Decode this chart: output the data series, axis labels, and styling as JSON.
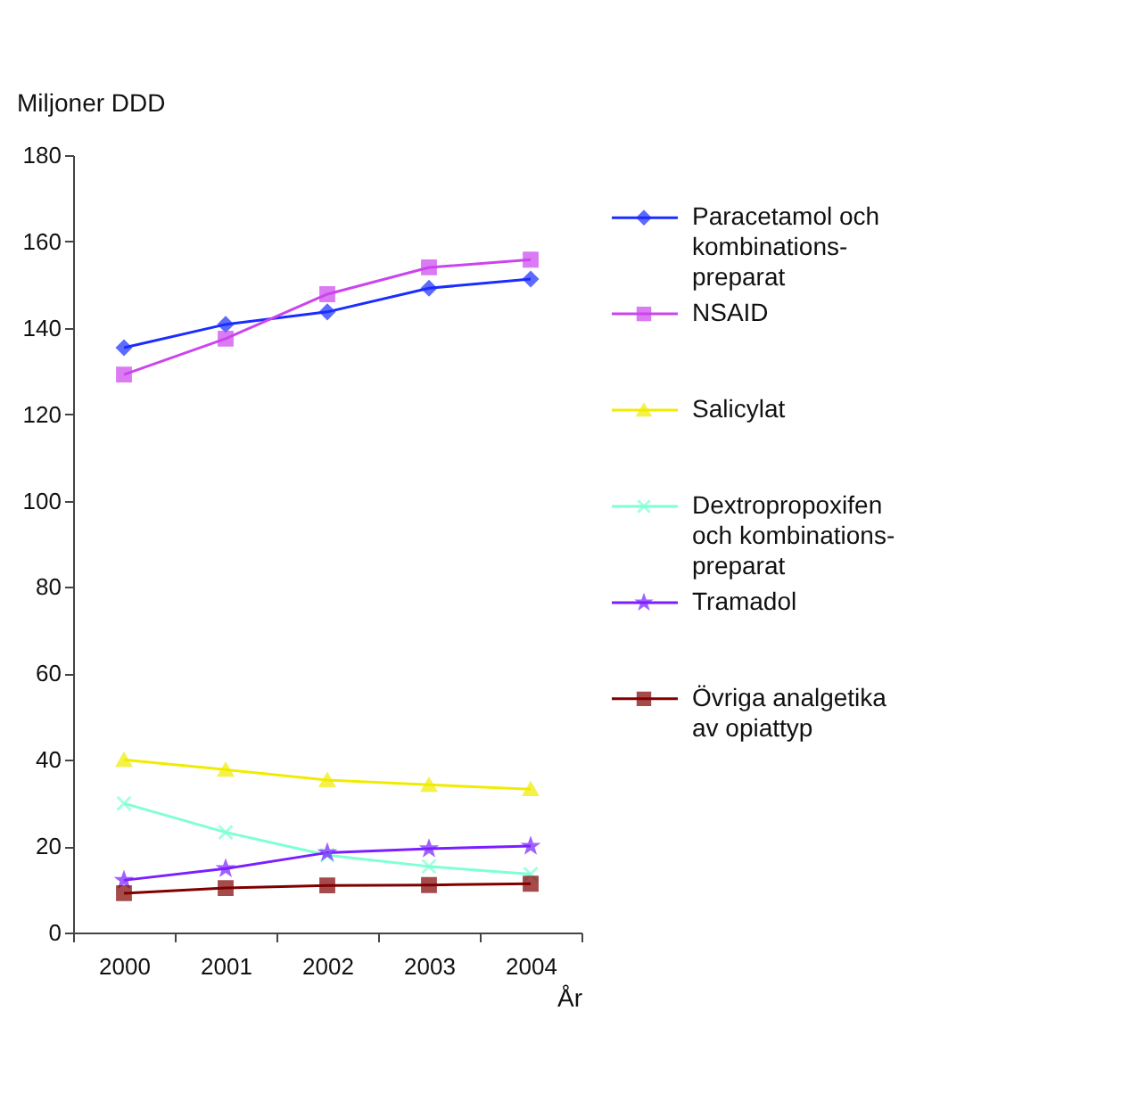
{
  "chart_data": {
    "type": "line",
    "ylabel": "Miljoner DDD",
    "xlabel": "År",
    "categories": [
      "2000",
      "2001",
      "2002",
      "2003",
      "2004"
    ],
    "ylim": [
      0,
      180
    ],
    "yticks": [
      0,
      20,
      40,
      60,
      80,
      100,
      120,
      140,
      160,
      180
    ],
    "grid": false,
    "legend": "right",
    "line_style": "solid",
    "series": [
      {
        "name": "Paracetamol och\nkombinations-\npreparat",
        "color": "#1a2cff",
        "marker": "diamond",
        "values": [
          135.4,
          140.8,
          143.7,
          149.2,
          151.3
        ]
      },
      {
        "name": "NSAID",
        "color": "#cc44ee",
        "marker": "square",
        "values": [
          129.2,
          137.5,
          147.8,
          154.0,
          155.8
        ]
      },
      {
        "name": "Salicylat",
        "color": "#f0ec00",
        "marker": "triangle",
        "values": [
          40.0,
          37.7,
          35.3,
          34.2,
          33.2
        ]
      },
      {
        "name": "Dextropropoxifen\noch kombinations-\npreparat",
        "color": "#7fffd4",
        "marker": "cross",
        "values": [
          29.9,
          23.2,
          17.9,
          15.3,
          13.5
        ]
      },
      {
        "name": "Tramadol",
        "color": "#7a1fff",
        "marker": "star",
        "values": [
          12.1,
          14.8,
          18.5,
          19.4,
          20.0
        ]
      },
      {
        "name": "Övriga analgetika\nav opiattyp",
        "color": "#800000",
        "marker": "square",
        "values": [
          9.1,
          10.3,
          10.9,
          11.0,
          11.3
        ]
      }
    ]
  }
}
